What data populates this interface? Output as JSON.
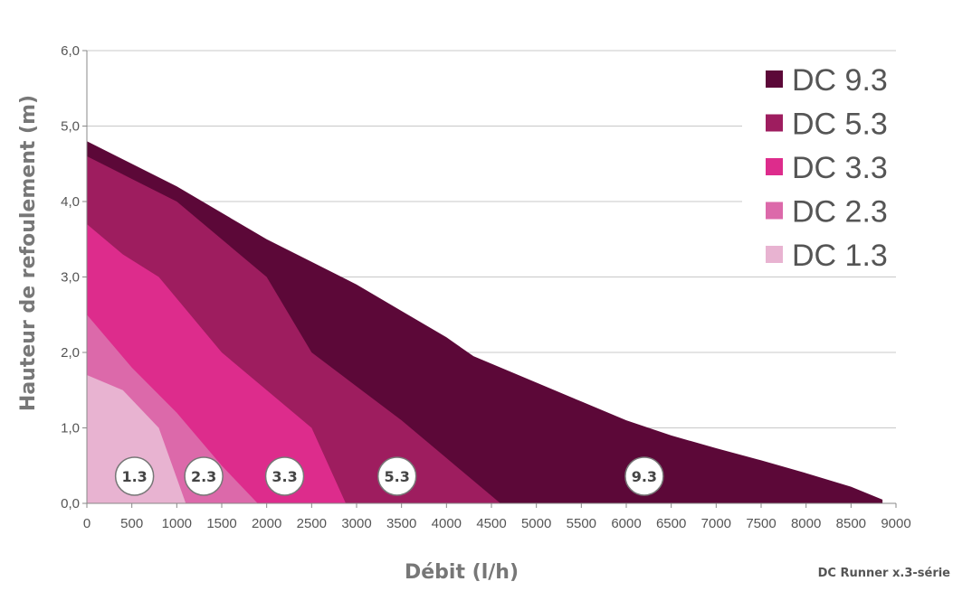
{
  "chart_data": {
    "type": "area",
    "xlabel": "Débit (l/h)",
    "ylabel": "Hauteur de refoulement  (m)",
    "footer": "DC Runner x.3-série",
    "xlim": [
      0,
      9000
    ],
    "ylim": [
      0,
      6
    ],
    "x_ticks": [
      "0",
      "500",
      "1000",
      "1500",
      "2000",
      "2500",
      "3000",
      "3500",
      "4000",
      "4500",
      "5000",
      "5500",
      "6000",
      "6500",
      "7000",
      "7500",
      "8000",
      "8500",
      "9000"
    ],
    "y_ticks": [
      "0,0",
      "1,0",
      "2,0",
      "3,0",
      "4,0",
      "5,0",
      "6,0"
    ],
    "grid": "horizontal",
    "legend_position": "top-right",
    "series": [
      {
        "name": "DC 9.3",
        "badge": "9.3",
        "color": "#5c0838",
        "x": [
          0,
          500,
          1000,
          1500,
          2000,
          2500,
          3000,
          3500,
          4000,
          4300,
          5000,
          5500,
          6000,
          6500,
          7000,
          7500,
          8000,
          8500,
          8850
        ],
        "y": [
          4.8,
          4.5,
          4.2,
          3.85,
          3.5,
          3.2,
          2.9,
          2.55,
          2.2,
          1.95,
          1.6,
          1.35,
          1.1,
          0.9,
          0.73,
          0.57,
          0.4,
          0.22,
          0.05
        ]
      },
      {
        "name": "DC 5.3",
        "badge": "5.3",
        "color": "#9e1d5f",
        "x": [
          0,
          500,
          1000,
          1500,
          2000,
          2500,
          3000,
          3500,
          4000,
          4600
        ],
        "y": [
          4.6,
          4.3,
          4.0,
          3.5,
          3.0,
          2.0,
          1.55,
          1.1,
          0.6,
          0.0
        ]
      },
      {
        "name": "DC 3.3",
        "badge": "3.3",
        "color": "#dd2c8c",
        "x": [
          0,
          400,
          800,
          1500,
          2000,
          2500,
          2880
        ],
        "y": [
          3.7,
          3.3,
          3.0,
          2.0,
          1.5,
          1.0,
          0.0
        ]
      },
      {
        "name": "DC 2.3",
        "badge": "2.3",
        "color": "#dc69aa",
        "x": [
          0,
          500,
          1000,
          1500,
          1900
        ],
        "y": [
          2.5,
          1.8,
          1.2,
          0.5,
          0.0
        ]
      },
      {
        "name": "DC 1.3",
        "badge": "1.3",
        "color": "#e8b3d1",
        "x": [
          0,
          400,
          800,
          1100
        ],
        "y": [
          1.7,
          1.5,
          1.0,
          0.0
        ]
      }
    ],
    "badge_positions": [
      {
        "label": "1.3",
        "x": 530,
        "y": 0.36
      },
      {
        "label": "2.3",
        "x": 1300,
        "y": 0.36
      },
      {
        "label": "3.3",
        "x": 2200,
        "y": 0.36
      },
      {
        "label": "5.3",
        "x": 3450,
        "y": 0.36
      },
      {
        "label": "9.3",
        "x": 6200,
        "y": 0.36
      }
    ]
  }
}
